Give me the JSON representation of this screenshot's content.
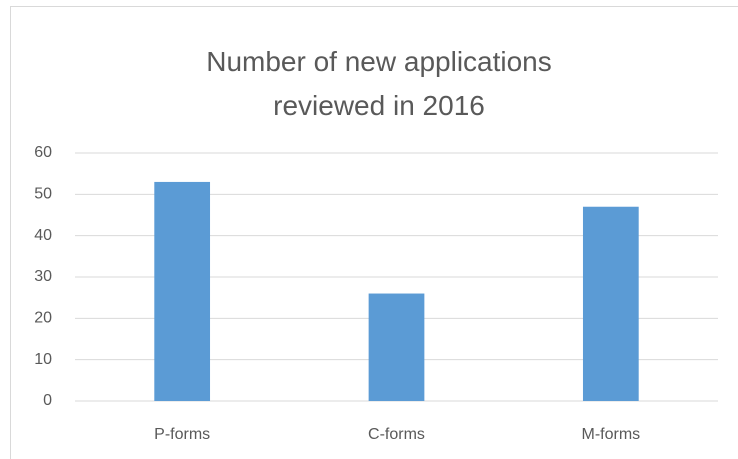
{
  "chart_data": {
    "type": "bar",
    "title": "Number of new applications reviewed in 2016",
    "categories": [
      "P-forms",
      "C-forms",
      "M-forms"
    ],
    "values": [
      53,
      26,
      47
    ],
    "color": "#5b9bd5",
    "ylim": [
      0,
      60
    ],
    "yticks": [
      0,
      10,
      20,
      30,
      40,
      50,
      60
    ],
    "grid": true
  }
}
